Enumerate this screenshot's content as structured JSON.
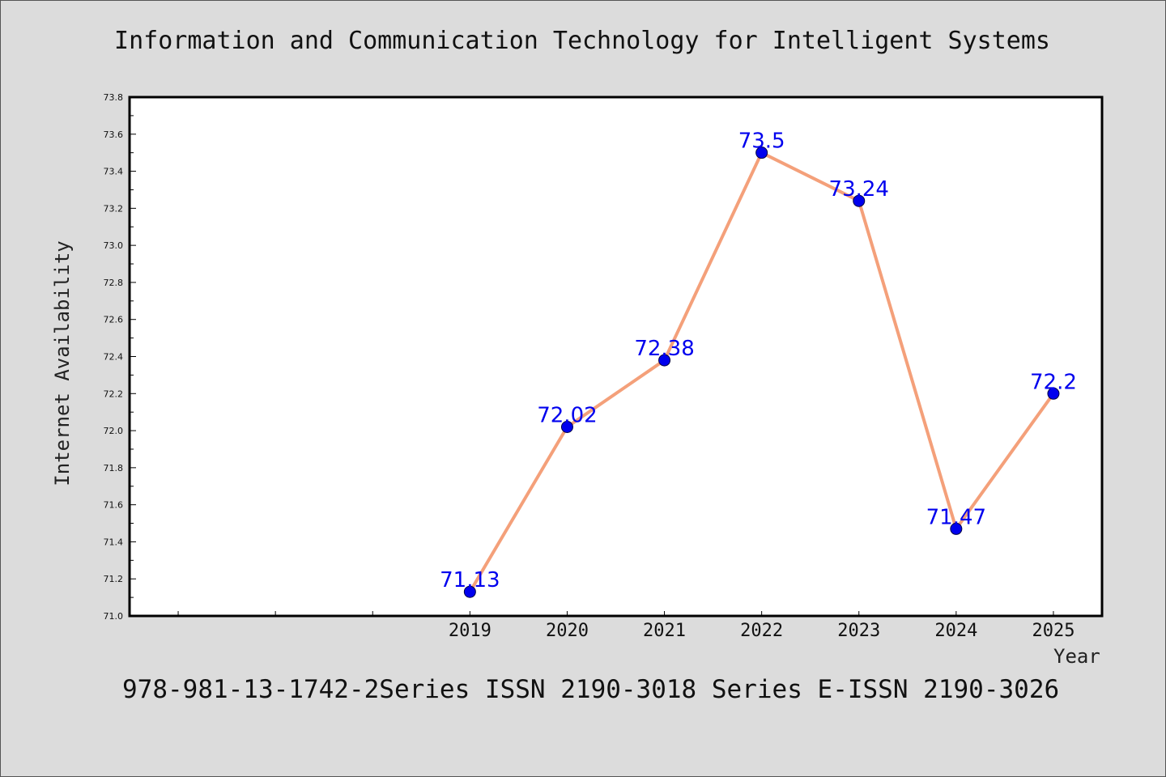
{
  "chart_data": {
    "type": "line",
    "title": "Information and Communication Technology for Intelligent Systems",
    "xlabel": "Year",
    "ylabel": "Internet Availability",
    "footer": "978-981-13-1742-2Series ISSN 2190-3018 Series E-ISSN 2190-3026",
    "x": [
      2019,
      2020,
      2021,
      2022,
      2023,
      2024,
      2025
    ],
    "x_tick_labels": [
      "2019",
      "2020",
      "2021",
      "2022",
      "2023",
      "2024",
      "2025"
    ],
    "xlim": [
      2015.5,
      2025.5
    ],
    "ylim": [
      71.0,
      73.8
    ],
    "y_ticks": [
      71.0,
      71.2,
      71.4,
      71.6,
      71.8,
      72.0,
      72.2,
      72.4,
      72.6,
      72.8,
      73.0,
      73.2,
      73.4,
      73.6,
      73.8
    ],
    "y_tick_labels": [
      "71.0",
      "71.2",
      "71.4",
      "71.6",
      "71.8",
      "72.0",
      "72.2",
      "72.4",
      "72.6",
      "72.8",
      "73.0",
      "73.2",
      "73.4",
      "73.6",
      "73.8"
    ],
    "series": [
      {
        "values": [
          71.13,
          72.02,
          72.38,
          73.5,
          73.24,
          71.47,
          72.2
        ],
        "data_labels": [
          "71.13",
          "72.02",
          "72.38",
          "73.5",
          "73.24",
          "71.47",
          "72.2"
        ],
        "line_color": "#f4a07a",
        "marker_color": "#0000ee"
      }
    ],
    "grid": false,
    "plot_background": "#ffffff",
    "page_background": "#dcdcdc"
  }
}
